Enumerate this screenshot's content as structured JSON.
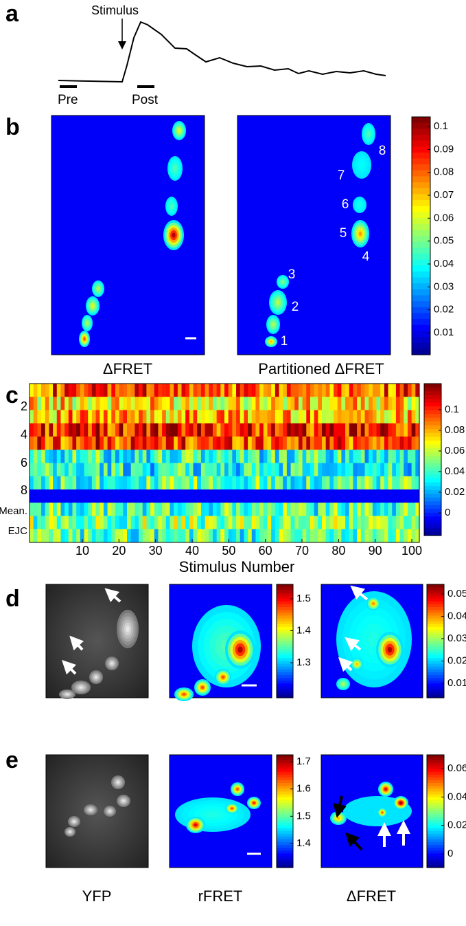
{
  "panel_a": {
    "label": "a",
    "stimulus": "Stimulus",
    "pre": "Pre",
    "post": "Post"
  },
  "panel_b": {
    "label": "b",
    "left_caption": "ΔFRET",
    "right_caption": "Partitioned ΔFRET",
    "regions": [
      "1",
      "2",
      "3",
      "4",
      "5",
      "6",
      "7",
      "8"
    ],
    "colorbar_ticks": [
      0.1,
      0.09,
      0.08,
      0.07,
      0.06,
      0.05,
      0.04,
      0.03,
      0.02,
      0.01
    ]
  },
  "panel_c": {
    "label": "c",
    "y_labels": [
      "2",
      "4",
      "6",
      "8",
      "Mean.",
      "EJC"
    ],
    "x_ticks": [
      10,
      20,
      30,
      40,
      50,
      60,
      70,
      80,
      90,
      100
    ],
    "x_label": "Stimulus Number",
    "colorbar_ticks": [
      0.1,
      0.08,
      0.06,
      0.04,
      0.02,
      0
    ]
  },
  "panel_d": {
    "label": "d",
    "rfret_ticks": [
      1.5,
      1.4,
      1.3
    ],
    "dfret_ticks": [
      0.05,
      0.04,
      0.03,
      0.02,
      0.01
    ]
  },
  "panel_e": {
    "label": "e",
    "rfret_ticks": [
      1.7,
      1.6,
      1.5,
      1.4
    ],
    "dfret_ticks": [
      0.06,
      0.04,
      0.02,
      0
    ],
    "captions": [
      "YFP",
      "rFRET",
      "ΔFRET"
    ]
  }
}
